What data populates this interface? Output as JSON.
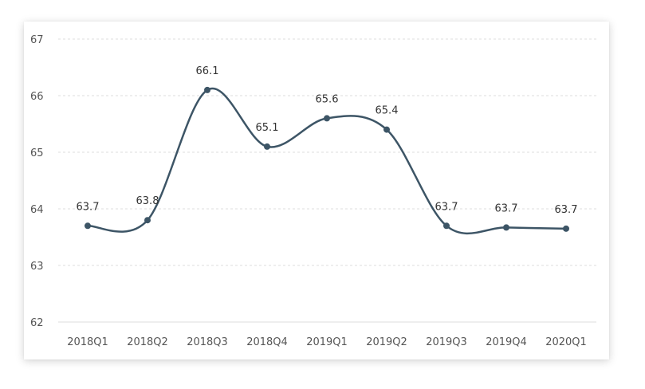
{
  "chart_data": {
    "type": "line",
    "categories": [
      "2018Q1",
      "2018Q2",
      "2018Q3",
      "2018Q4",
      "2019Q1",
      "2019Q2",
      "2019Q3",
      "2019Q4",
      "2020Q1"
    ],
    "values": [
      63.7,
      63.8,
      66.1,
      65.1,
      65.6,
      65.4,
      63.7,
      63.67,
      63.65
    ],
    "data_labels": [
      "63.7",
      "63.8",
      "66.1",
      "65.1",
      "65.6",
      "65.4",
      "63.7",
      "63.7",
      "63.7"
    ],
    "yticks": [
      62,
      63,
      64,
      65,
      66,
      67
    ],
    "ylim": [
      62,
      67
    ],
    "title": "",
    "xlabel": "",
    "ylabel": "",
    "grid": true,
    "line_color": "#3d5566",
    "grid_color": "#dddddd",
    "smooth": true
  }
}
